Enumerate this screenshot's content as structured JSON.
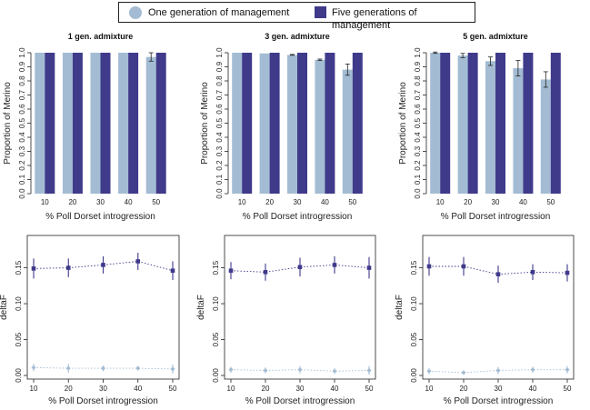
{
  "legend": {
    "entries": [
      {
        "label": "One generation of management",
        "color": "#a3bcd3",
        "shape": "circle"
      },
      {
        "label": "Five generations of management",
        "color": "#3f3a8a",
        "shape": "square"
      }
    ]
  },
  "chart_data": [
    {
      "type": "bar",
      "title": "1 gen. admixture",
      "xlabel": "% Poll Dorset introgression",
      "ylabel": "Proportion of Merino",
      "categories": [
        "10",
        "20",
        "30",
        "40",
        "50"
      ],
      "ylim": [
        0,
        1.0
      ],
      "yticks": [
        "0.0",
        "0.1",
        "0.2",
        "0.3",
        "0.4",
        "0.5",
        "0.6",
        "0.7",
        "0.8",
        "0.9",
        "1.0"
      ],
      "series": [
        {
          "name": "One generation of management",
          "values": [
            1.0,
            1.0,
            1.0,
            1.0,
            0.97
          ],
          "errors": [
            0,
            0,
            0,
            0,
            0.03
          ]
        },
        {
          "name": "Five generations of management",
          "values": [
            1.0,
            1.0,
            1.0,
            1.0,
            1.0
          ],
          "errors": [
            0,
            0,
            0,
            0,
            0
          ]
        }
      ]
    },
    {
      "type": "bar",
      "title": "3 gen. admixture",
      "xlabel": "% Poll Dorset introgression",
      "ylabel": "Proportion of Merino",
      "categories": [
        "10",
        "20",
        "30",
        "40",
        "50"
      ],
      "ylim": [
        0,
        1.0
      ],
      "yticks": [
        "0.0",
        "0.1",
        "0.2",
        "0.3",
        "0.4",
        "0.5",
        "0.6",
        "0.7",
        "0.8",
        "0.9",
        "1.0"
      ],
      "series": [
        {
          "name": "One generation of management",
          "values": [
            1.0,
            0.995,
            0.985,
            0.95,
            0.88
          ],
          "errors": [
            0,
            0,
            0.003,
            0.005,
            0.04
          ]
        },
        {
          "name": "Five generations of management",
          "values": [
            1.0,
            1.0,
            1.0,
            1.0,
            1.0
          ],
          "errors": [
            0,
            0,
            0,
            0,
            0
          ]
        }
      ]
    },
    {
      "type": "bar",
      "title": "5 gen. admixture",
      "xlabel": "% Poll Dorset introgression",
      "ylabel": "Proportion of Merino",
      "categories": [
        "10",
        "20",
        "30",
        "40",
        "50"
      ],
      "ylim": [
        0,
        1.0
      ],
      "yticks": [
        "0.0",
        "0.1",
        "0.2",
        "0.3",
        "0.4",
        "0.5",
        "0.6",
        "0.7",
        "0.8",
        "0.9",
        "1.0"
      ],
      "series": [
        {
          "name": "One generation of management",
          "values": [
            1.0,
            0.98,
            0.94,
            0.89,
            0.81
          ],
          "errors": [
            0.005,
            0.015,
            0.03,
            0.055,
            0.055
          ]
        },
        {
          "name": "Five generations of management",
          "values": [
            1.0,
            1.0,
            1.0,
            1.0,
            1.0
          ],
          "errors": [
            0,
            0,
            0,
            0,
            0
          ]
        }
      ]
    },
    {
      "type": "line",
      "title": "",
      "xlabel": "% Poll Dorset introgression",
      "ylabel": "deltaF",
      "x": [
        10,
        20,
        30,
        40,
        50
      ],
      "ylim": [
        0,
        0.19
      ],
      "yticks": [
        0.0,
        0.05,
        0.1,
        0.15
      ],
      "series": [
        {
          "name": "One generation of management",
          "values": [
            0.011,
            0.01,
            0.01,
            0.01,
            0.009
          ],
          "errors": [
            0.005,
            0.006,
            0.004,
            0.003,
            0.006
          ]
        },
        {
          "name": "Five generations of management",
          "values": [
            0.149,
            0.15,
            0.154,
            0.159,
            0.146
          ],
          "errors": [
            0.014,
            0.013,
            0.012,
            0.012,
            0.013
          ]
        }
      ]
    },
    {
      "type": "line",
      "title": "",
      "xlabel": "% Poll Dorset introgression",
      "ylabel": "deltaF",
      "x": [
        10,
        20,
        30,
        40,
        50
      ],
      "ylim": [
        0,
        0.19
      ],
      "yticks": [
        0.0,
        0.05,
        0.1,
        0.15
      ],
      "series": [
        {
          "name": "One generation of management",
          "values": [
            0.008,
            0.007,
            0.008,
            0.006,
            0.007
          ],
          "errors": [
            0.004,
            0.004,
            0.005,
            0.004,
            0.006
          ]
        },
        {
          "name": "Five generations of management",
          "values": [
            0.146,
            0.144,
            0.151,
            0.154,
            0.15
          ],
          "errors": [
            0.012,
            0.012,
            0.013,
            0.012,
            0.015
          ]
        }
      ]
    },
    {
      "type": "line",
      "title": "",
      "xlabel": "% Poll Dorset introgression",
      "ylabel": "deltaF",
      "x": [
        10,
        20,
        30,
        40,
        50
      ],
      "ylim": [
        0,
        0.19
      ],
      "yticks": [
        0.0,
        0.05,
        0.1,
        0.15
      ],
      "series": [
        {
          "name": "One generation of management",
          "values": [
            0.006,
            0.004,
            0.007,
            0.008,
            0.008
          ],
          "errors": [
            0.004,
            0.003,
            0.005,
            0.004,
            0.005
          ]
        },
        {
          "name": "Five generations of management",
          "values": [
            0.152,
            0.152,
            0.141,
            0.144,
            0.143
          ],
          "errors": [
            0.013,
            0.013,
            0.012,
            0.011,
            0.012
          ]
        }
      ]
    }
  ]
}
